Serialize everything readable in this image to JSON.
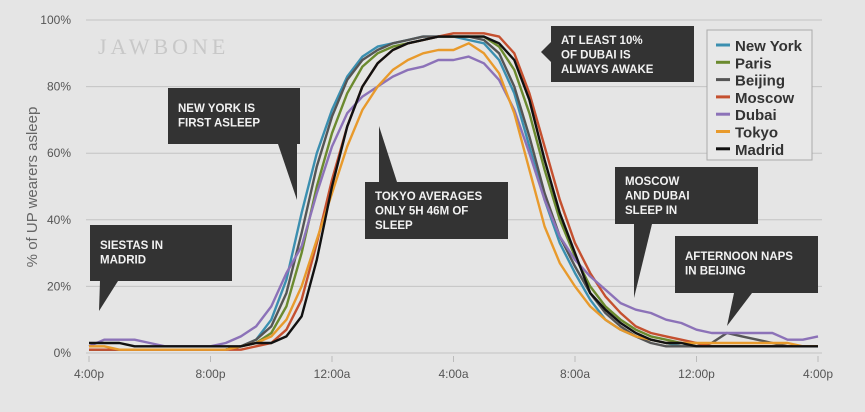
{
  "chart_data": {
    "type": "line",
    "watermark": "JAWBONE",
    "ylabel": "% of UP wearers asleep",
    "xlabel": "",
    "ylim": [
      0,
      100
    ],
    "yticks": [
      "0%",
      "20%",
      "40%",
      "60%",
      "80%",
      "100%"
    ],
    "xticks": [
      "4:00p",
      "8:00p",
      "12:00a",
      "4:00a",
      "8:00a",
      "12:00p",
      "4:00p"
    ],
    "grid": true,
    "legend_position": "top-right",
    "x": [
      "16:00",
      "16:30",
      "17:00",
      "17:30",
      "18:00",
      "18:30",
      "19:00",
      "19:30",
      "20:00",
      "20:30",
      "21:00",
      "21:30",
      "22:00",
      "22:30",
      "23:00",
      "23:30",
      "00:00",
      "00:30",
      "01:00",
      "01:30",
      "02:00",
      "02:30",
      "03:00",
      "03:30",
      "04:00",
      "04:30",
      "05:00",
      "05:30",
      "06:00",
      "06:30",
      "07:00",
      "07:30",
      "08:00",
      "08:30",
      "09:00",
      "09:30",
      "10:00",
      "10:30",
      "11:00",
      "11:30",
      "12:00",
      "12:30",
      "13:00",
      "13:30",
      "14:00",
      "14:30",
      "15:00",
      "15:30",
      "16:00"
    ],
    "series": [
      {
        "name": "New York",
        "color": "#3b8fb0",
        "values": [
          1,
          1,
          1,
          1,
          1,
          1,
          1,
          1,
          1,
          1,
          2,
          4,
          10,
          22,
          42,
          60,
          73,
          83,
          89,
          92,
          93,
          94,
          95,
          95,
          95,
          94,
          93,
          88,
          78,
          62,
          46,
          33,
          24,
          16,
          10,
          7,
          5,
          4,
          3,
          2,
          2,
          2,
          2,
          2,
          2,
          2,
          2,
          2,
          2
        ]
      },
      {
        "name": "Paris",
        "color": "#6b8a2e",
        "values": [
          1,
          1,
          1,
          1,
          1,
          1,
          1,
          1,
          1,
          1,
          2,
          3,
          6,
          14,
          30,
          50,
          66,
          78,
          86,
          90,
          92,
          93,
          94,
          95,
          95,
          95,
          95,
          92,
          85,
          72,
          55,
          40,
          29,
          20,
          14,
          10,
          7,
          5,
          4,
          3,
          2,
          2,
          2,
          2,
          2,
          2,
          2,
          2,
          2
        ]
      },
      {
        "name": "Beijing",
        "color": "#555555",
        "values": [
          1,
          1,
          1,
          1,
          1,
          1,
          1,
          1,
          1,
          1,
          2,
          4,
          8,
          18,
          36,
          56,
          71,
          82,
          88,
          91,
          93,
          94,
          95,
          95,
          95,
          95,
          94,
          90,
          80,
          65,
          48,
          35,
          26,
          18,
          12,
          8,
          5,
          3,
          2,
          2,
          2,
          3,
          6,
          5,
          4,
          3,
          2,
          2,
          2
        ]
      },
      {
        "name": "Moscow",
        "color": "#c5502f",
        "values": [
          1,
          1,
          1,
          1,
          1,
          1,
          1,
          1,
          1,
          1,
          1,
          2,
          3,
          7,
          16,
          33,
          52,
          68,
          80,
          87,
          91,
          93,
          94,
          95,
          96,
          96,
          96,
          95,
          90,
          78,
          62,
          46,
          33,
          24,
          17,
          12,
          8,
          6,
          5,
          4,
          3,
          2,
          2,
          2,
          2,
          2,
          2,
          2,
          2
        ]
      },
      {
        "name": "Dubai",
        "color": "#8c72b8",
        "values": [
          2,
          4,
          4,
          4,
          3,
          2,
          2,
          2,
          2,
          3,
          5,
          8,
          14,
          24,
          32,
          48,
          62,
          72,
          77,
          80,
          83,
          85,
          86,
          88,
          88,
          89,
          87,
          82,
          73,
          60,
          46,
          35,
          28,
          23,
          19,
          15,
          13,
          12,
          10,
          9,
          7,
          6,
          6,
          6,
          6,
          6,
          4,
          4,
          5
        ]
      },
      {
        "name": "Tokyo",
        "color": "#e89a2c",
        "values": [
          2,
          2,
          1,
          1,
          1,
          1,
          1,
          1,
          1,
          1,
          2,
          3,
          5,
          10,
          20,
          34,
          48,
          62,
          73,
          80,
          85,
          88,
          90,
          91,
          91,
          93,
          90,
          84,
          72,
          55,
          38,
          27,
          20,
          14,
          10,
          7,
          5,
          4,
          3,
          3,
          3,
          3,
          3,
          3,
          3,
          3,
          3,
          2,
          2
        ]
      },
      {
        "name": "Madrid",
        "color": "#111111",
        "values": [
          3,
          3,
          3,
          2,
          2,
          2,
          2,
          2,
          2,
          2,
          2,
          3,
          3,
          5,
          11,
          28,
          50,
          68,
          80,
          87,
          91,
          93,
          94,
          95,
          95,
          95,
          95,
          93,
          88,
          76,
          58,
          42,
          30,
          18,
          13,
          9,
          6,
          4,
          3,
          3,
          2,
          2,
          2,
          2,
          2,
          2,
          2,
          2,
          2
        ]
      }
    ],
    "annotations": [
      {
        "lines": [
          "SIESTAS IN",
          "MADRID"
        ]
      },
      {
        "lines": [
          "NEW YORK IS",
          "FIRST ASLEEP"
        ]
      },
      {
        "lines": [
          "TOKYO AVERAGES",
          "ONLY 5H 46M OF",
          "SLEEP"
        ]
      },
      {
        "lines": [
          "AT LEAST 10%",
          "OF DUBAI IS",
          "ALWAYS AWAKE"
        ]
      },
      {
        "lines": [
          "MOSCOW",
          "AND DUBAI",
          "SLEEP IN"
        ]
      },
      {
        "lines": [
          "AFTERNOON NAPS",
          "IN BEIJING"
        ]
      }
    ]
  }
}
